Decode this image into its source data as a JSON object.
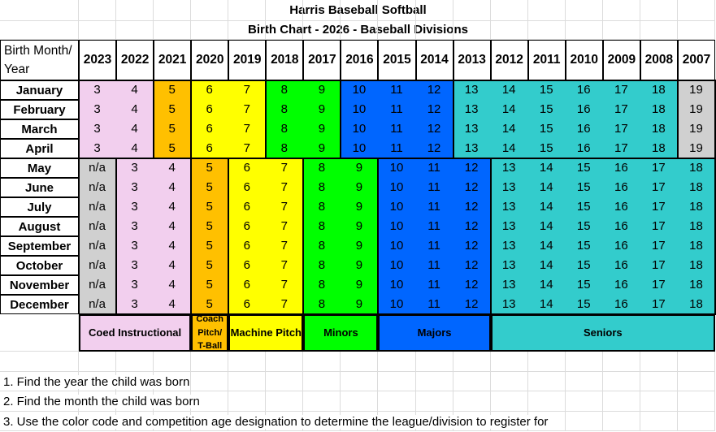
{
  "title": "Harris Baseball Softball",
  "subtitle": "Birth Chart - 2026 - Baseball Divisions",
  "header_label": "Birth Month/ Year",
  "years": [
    "2023",
    "2022",
    "2021",
    "2020",
    "2019",
    "2018",
    "2017",
    "2016",
    "2015",
    "2014",
    "2013",
    "2012",
    "2011",
    "2010",
    "2009",
    "2008",
    "2007"
  ],
  "colors": {
    "coed": "#f2cfee",
    "coach": "#ffc000",
    "machine": "#ffff00",
    "minors": "#00ff00",
    "majors": "#0066ff",
    "seniors": "#33cccc",
    "ineligible": "#d0d0d0"
  },
  "rows": [
    {
      "month": "January",
      "ages": [
        "3",
        "4",
        "5",
        "6",
        "7",
        "8",
        "9",
        "10",
        "11",
        "12",
        "13",
        "14",
        "15",
        "16",
        "17",
        "18",
        "19"
      ]
    },
    {
      "month": "February",
      "ages": [
        "3",
        "4",
        "5",
        "6",
        "7",
        "8",
        "9",
        "10",
        "11",
        "12",
        "13",
        "14",
        "15",
        "16",
        "17",
        "18",
        "19"
      ]
    },
    {
      "month": "March",
      "ages": [
        "3",
        "4",
        "5",
        "6",
        "7",
        "8",
        "9",
        "10",
        "11",
        "12",
        "13",
        "14",
        "15",
        "16",
        "17",
        "18",
        "19"
      ]
    },
    {
      "month": "April",
      "ages": [
        "3",
        "4",
        "5",
        "6",
        "7",
        "8",
        "9",
        "10",
        "11",
        "12",
        "13",
        "14",
        "15",
        "16",
        "17",
        "18",
        "19"
      ]
    },
    {
      "month": "May",
      "ages": [
        "n/a",
        "3",
        "4",
        "5",
        "6",
        "7",
        "8",
        "9",
        "10",
        "11",
        "12",
        "13",
        "14",
        "15",
        "16",
        "17",
        "18"
      ]
    },
    {
      "month": "June",
      "ages": [
        "n/a",
        "3",
        "4",
        "5",
        "6",
        "7",
        "8",
        "9",
        "10",
        "11",
        "12",
        "13",
        "14",
        "15",
        "16",
        "17",
        "18"
      ]
    },
    {
      "month": "July",
      "ages": [
        "n/a",
        "3",
        "4",
        "5",
        "6",
        "7",
        "8",
        "9",
        "10",
        "11",
        "12",
        "13",
        "14",
        "15",
        "16",
        "17",
        "18"
      ]
    },
    {
      "month": "August",
      "ages": [
        "n/a",
        "3",
        "4",
        "5",
        "6",
        "7",
        "8",
        "9",
        "10",
        "11",
        "12",
        "13",
        "14",
        "15",
        "16",
        "17",
        "18"
      ]
    },
    {
      "month": "September",
      "ages": [
        "n/a",
        "3",
        "4",
        "5",
        "6",
        "7",
        "8",
        "9",
        "10",
        "11",
        "12",
        "13",
        "14",
        "15",
        "16",
        "17",
        "18"
      ]
    },
    {
      "month": "October",
      "ages": [
        "n/a",
        "3",
        "4",
        "5",
        "6",
        "7",
        "8",
        "9",
        "10",
        "11",
        "12",
        "13",
        "14",
        "15",
        "16",
        "17",
        "18"
      ]
    },
    {
      "month": "November",
      "ages": [
        "n/a",
        "3",
        "4",
        "5",
        "6",
        "7",
        "8",
        "9",
        "10",
        "11",
        "12",
        "13",
        "14",
        "15",
        "16",
        "17",
        "18"
      ]
    },
    {
      "month": "December",
      "ages": [
        "n/a",
        "3",
        "4",
        "5",
        "6",
        "7",
        "8",
        "9",
        "10",
        "11",
        "12",
        "13",
        "14",
        "15",
        "16",
        "17",
        "18"
      ]
    }
  ],
  "groups_jan_apr": [
    [
      "coed",
      0,
      1
    ],
    [
      "coach",
      2,
      2
    ],
    [
      "machine",
      3,
      4
    ],
    [
      "minors",
      5,
      6
    ],
    [
      "majors",
      7,
      9
    ],
    [
      "seniors",
      10,
      15
    ],
    [
      "ineligible",
      16,
      16
    ]
  ],
  "groups_may_dec": [
    [
      "ineligible",
      0,
      0
    ],
    [
      "coed",
      1,
      2
    ],
    [
      "coach",
      3,
      3
    ],
    [
      "machine",
      4,
      5
    ],
    [
      "minors",
      6,
      7
    ],
    [
      "majors",
      8,
      10
    ],
    [
      "seniors",
      11,
      16
    ]
  ],
  "divisions": [
    {
      "key": "coed",
      "label": "Coed Instructional",
      "from": 0,
      "to": 2
    },
    {
      "key": "coach",
      "label": "Coach Pitch/ T-Ball",
      "from": 3,
      "to": 3
    },
    {
      "key": "machine",
      "label": "Machine Pitch",
      "from": 4,
      "to": 5
    },
    {
      "key": "minors",
      "label": "Minors",
      "from": 6,
      "to": 7
    },
    {
      "key": "majors",
      "label": "Majors",
      "from": 8,
      "to": 10
    },
    {
      "key": "seniors",
      "label": "Seniors",
      "from": 11,
      "to": 16
    }
  ],
  "notes": [
    "1. Find the year the child was born",
    "2. Find the month the child was born",
    "3. Use the color code and competition age designation to determine the league/division to register for"
  ]
}
